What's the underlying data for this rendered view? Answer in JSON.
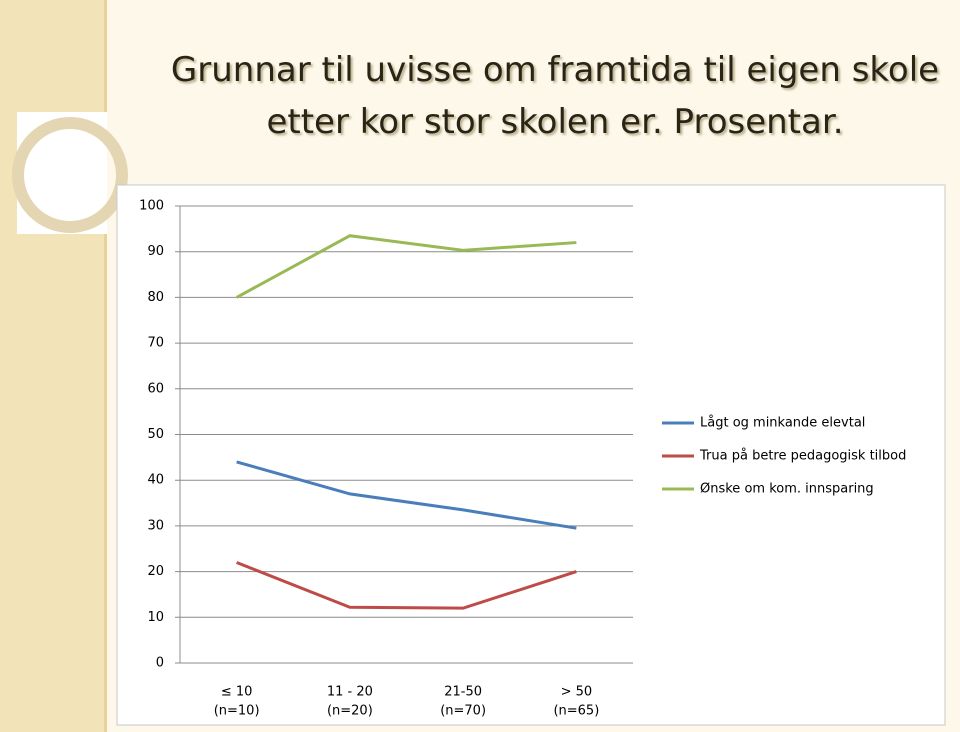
{
  "chart_data": {
    "type": "line",
    "title": "Grunnar til uvisse om framtida til eigen skole etter kor stor skolen er. Prosentar.",
    "categories": [
      "≤ 10",
      "11 - 20",
      "21-50",
      "> 50"
    ],
    "category_counts": [
      "(n=10)",
      "(n=20)",
      "(n=70)",
      "(n=65)"
    ],
    "series": [
      {
        "name": "Lågt og minkande elevtal",
        "color": "#4a7ebb",
        "values": [
          44,
          37,
          33.5,
          29.5
        ]
      },
      {
        "name": "Trua på betre pedagogisk tilbod",
        "color": "#be4b48",
        "values": [
          22,
          12.2,
          12,
          20
        ]
      },
      {
        "name": "Ønske om kom. innsparing",
        "color": "#98b954",
        "values": [
          80,
          93.5,
          90.3,
          92
        ]
      }
    ],
    "ylim": [
      0,
      100
    ],
    "yticks": [
      0,
      10,
      20,
      30,
      40,
      50,
      60,
      70,
      80,
      90,
      100
    ],
    "grid": true,
    "legend": "right"
  }
}
